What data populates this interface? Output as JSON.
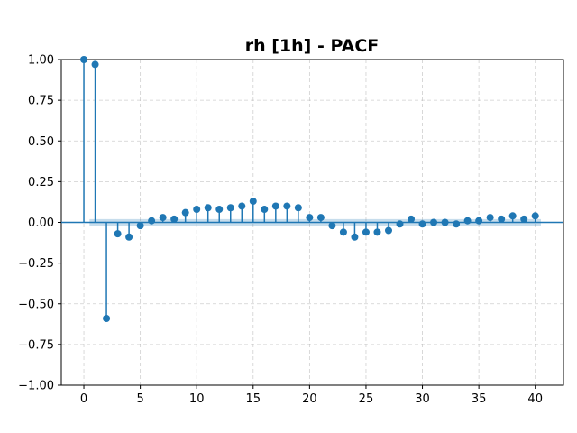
{
  "chart_data": {
    "type": "scatter",
    "subtype": "stem",
    "title": "rh [1h] - PACF",
    "xlabel": "",
    "ylabel": "",
    "xlim": [
      -2,
      42.5
    ],
    "ylim": [
      -1.0,
      1.0
    ],
    "xticks": [
      0,
      5,
      10,
      15,
      20,
      25,
      30,
      35,
      40
    ],
    "xtick_labels": [
      "0",
      "5",
      "10",
      "15",
      "20",
      "25",
      "30",
      "35",
      "40"
    ],
    "yticks": [
      -1.0,
      -0.75,
      -0.5,
      -0.25,
      0.0,
      0.25,
      0.5,
      0.75,
      1.0
    ],
    "ytick_labels": [
      "−1.00",
      "−0.75",
      "−0.50",
      "−0.25",
      "0.00",
      "0.25",
      "0.50",
      "0.75",
      "1.00"
    ],
    "grid": true,
    "confidence_interval": 0.02,
    "series": [
      {
        "lags": [
          0,
          1,
          2,
          3,
          4,
          5,
          6,
          7,
          8,
          9,
          10,
          11,
          12,
          13,
          14,
          15,
          16,
          17,
          18,
          19,
          20,
          21,
          22,
          23,
          24,
          25,
          26,
          27,
          28,
          29,
          30,
          31,
          32,
          33,
          34,
          35,
          36,
          37,
          38,
          39,
          40
        ],
        "values": [
          1.0,
          0.97,
          -0.59,
          -0.07,
          -0.09,
          -0.02,
          0.01,
          0.03,
          0.02,
          0.06,
          0.08,
          0.09,
          0.08,
          0.09,
          0.1,
          0.13,
          0.08,
          0.1,
          0.1,
          0.09,
          0.03,
          0.03,
          -0.02,
          -0.06,
          -0.09,
          -0.06,
          -0.06,
          -0.05,
          -0.01,
          0.02,
          -0.01,
          0.0,
          0.0,
          -0.01,
          0.01,
          0.01,
          0.03,
          0.02,
          0.04,
          0.02,
          0.04
        ]
      }
    ],
    "colors": {
      "series": "#1f77b4"
    }
  }
}
